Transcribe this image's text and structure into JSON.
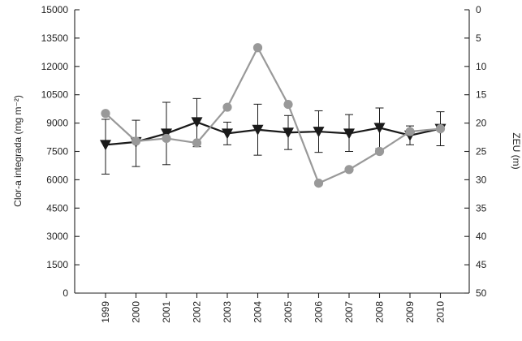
{
  "chart_data": {
    "type": "line",
    "title": "",
    "x": [
      "1999",
      "2000",
      "2001",
      "2002",
      "2003",
      "2004",
      "2005",
      "2006",
      "2007",
      "2008",
      "2009",
      "2010"
    ],
    "xlabel": "",
    "y_left": {
      "label": "Clor-a integrada (mg m⁻²)",
      "ylim": [
        0,
        15000
      ],
      "ticks": [
        "0",
        "1500",
        "3000",
        "4500",
        "6000",
        "7500",
        "9000",
        "10500",
        "12000",
        "13500",
        "15000"
      ]
    },
    "y_right": {
      "label": "ZEU (m)",
      "ylim": [
        50,
        0
      ],
      "inverted": true,
      "ticks": [
        "0",
        "5",
        "10",
        "15",
        "20",
        "25",
        "30",
        "35",
        "40",
        "45",
        "50"
      ]
    },
    "series": [
      {
        "axis": "left",
        "marker": "triangle-down",
        "color": "#1a1a1a",
        "values": [
          7850,
          8000,
          8450,
          9050,
          8450,
          8650,
          8500,
          8550,
          8450,
          8750,
          8350,
          8700
        ],
        "error_upper": [
          9200,
          9150,
          10100,
          10300,
          9050,
          10000,
          9400,
          9650,
          9450,
          9800,
          8850,
          9600
        ],
        "error_lower": [
          6300,
          6700,
          6800,
          7750,
          7850,
          7300,
          7600,
          7450,
          7500,
          7650,
          7850,
          7800
        ]
      },
      {
        "axis": "right",
        "marker": "circle",
        "color": "#999999",
        "values": [
          18.3,
          23.2,
          22.7,
          23.5,
          17.2,
          6.7,
          16.7,
          30.6,
          28.2,
          25.0,
          21.5,
          21.0
        ]
      }
    ],
    "grid": false,
    "legend": "none"
  }
}
